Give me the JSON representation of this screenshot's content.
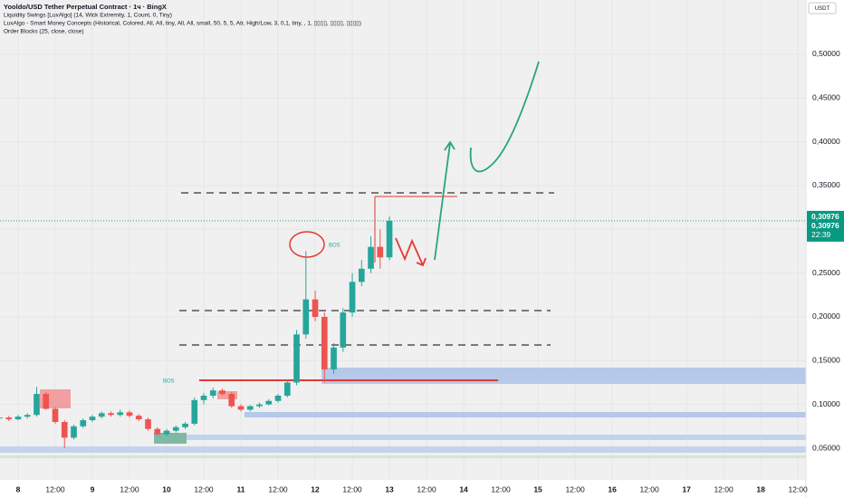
{
  "chart_data": {
    "type": "candlestick",
    "title": "Yooldo/USD Tether Perpetual Contract · 1ч · BingX",
    "indicators": [
      "Liquidity Swings [LuxAlgo] (14, Wick Extremity, 1, Count, 0, Tiny)",
      "LuxAlgo - Smart Money Concepts (Historical, Colored, All, All, tiny, All, All, small, 50, 5, 5, Atr, High/Low, 3, 0,1, tiny, , 1, ▯▯▯▯, ▯▯▯▯, ▯▯▯▯)",
      "Order Blocks (25, close, close)"
    ],
    "currency": "USDT",
    "up_color": "#26a69a",
    "down_color": "#ef5350",
    "x": [
      -6,
      -3,
      0,
      3,
      6,
      9,
      12,
      15,
      18,
      21,
      24,
      27,
      30,
      33,
      36,
      39,
      42,
      45,
      48,
      51,
      54,
      57,
      60,
      63,
      66,
      69,
      72,
      75,
      78,
      81,
      84,
      87,
      90,
      93,
      96,
      99,
      102,
      105,
      108,
      111,
      114,
      117,
      120
    ],
    "open": [
      0.084,
      0.085,
      0.083,
      0.086,
      0.088,
      0.112,
      0.095,
      0.08,
      0.062,
      0.075,
      0.082,
      0.086,
      0.09,
      0.088,
      0.091,
      0.087,
      0.083,
      0.072,
      0.066,
      0.07,
      0.074,
      0.078,
      0.105,
      0.11,
      0.116,
      0.112,
      0.098,
      0.094,
      0.098,
      0.1,
      0.104,
      0.11,
      0.125,
      0.18,
      0.22,
      0.2,
      0.14,
      0.165,
      0.205,
      0.24,
      0.255,
      0.28,
      0.268
    ],
    "high": [
      0.087,
      0.087,
      0.088,
      0.09,
      0.12,
      0.114,
      0.097,
      0.082,
      0.077,
      0.084,
      0.088,
      0.092,
      0.092,
      0.094,
      0.093,
      0.089,
      0.085,
      0.074,
      0.072,
      0.076,
      0.08,
      0.108,
      0.113,
      0.119,
      0.118,
      0.114,
      0.1,
      0.099,
      0.102,
      0.106,
      0.112,
      0.128,
      0.185,
      0.275,
      0.23,
      0.205,
      0.17,
      0.21,
      0.25,
      0.265,
      0.292,
      0.3,
      0.315
    ],
    "low": [
      0.082,
      0.081,
      0.082,
      0.084,
      0.086,
      0.094,
      0.078,
      0.05,
      0.06,
      0.073,
      0.08,
      0.084,
      0.086,
      0.086,
      0.085,
      0.081,
      0.07,
      0.064,
      0.064,
      0.068,
      0.072,
      0.076,
      0.1,
      0.107,
      0.11,
      0.096,
      0.092,
      0.092,
      0.096,
      0.099,
      0.102,
      0.108,
      0.122,
      0.175,
      0.195,
      0.125,
      0.135,
      0.16,
      0.2,
      0.235,
      0.25,
      0.255,
      0.265
    ],
    "close": [
      0.085,
      0.083,
      0.086,
      0.088,
      0.112,
      0.095,
      0.08,
      0.062,
      0.075,
      0.082,
      0.086,
      0.09,
      0.088,
      0.091,
      0.087,
      0.083,
      0.072,
      0.066,
      0.07,
      0.074,
      0.078,
      0.105,
      0.11,
      0.116,
      0.112,
      0.098,
      0.094,
      0.098,
      0.1,
      0.104,
      0.11,
      0.125,
      0.18,
      0.22,
      0.2,
      0.14,
      0.165,
      0.205,
      0.24,
      0.255,
      0.28,
      0.268,
      0.30976
    ],
    "last_price": 0.30976,
    "value_labels": [
      "0,30976",
      "0,30976"
    ],
    "countdown": "22:39",
    "xlim": [
      -5.85,
      254.6
    ],
    "ylim": [
      0.0138,
      0.562
    ],
    "xticks": [
      {
        "value": 0,
        "label": "8"
      },
      {
        "value": 12,
        "label": "12:00"
      },
      {
        "value": 24,
        "label": "9"
      },
      {
        "value": 36,
        "label": "12:00"
      },
      {
        "value": 48,
        "label": "10"
      },
      {
        "value": 60,
        "label": "12:00"
      },
      {
        "value": 72,
        "label": "11"
      },
      {
        "value": 84,
        "label": "12:00"
      },
      {
        "value": 96,
        "label": "12"
      },
      {
        "value": 108,
        "label": "12:00"
      },
      {
        "value": 120,
        "label": "13"
      },
      {
        "value": 132,
        "label": "12:00"
      },
      {
        "value": 144,
        "label": "14"
      },
      {
        "value": 156,
        "label": "12:00"
      },
      {
        "value": 168,
        "label": "15"
      },
      {
        "value": 180,
        "label": "12:00"
      },
      {
        "value": 192,
        "label": "16"
      },
      {
        "value": 204,
        "label": "12:00"
      },
      {
        "value": 216,
        "label": "17"
      },
      {
        "value": 228,
        "label": "12:00"
      },
      {
        "value": 240,
        "label": "18"
      },
      {
        "value": 252,
        "label": "12:00"
      }
    ],
    "yticks": [
      {
        "value": 0.05,
        "label": "0,05000"
      },
      {
        "value": 0.1,
        "label": "0,10000"
      },
      {
        "value": 0.15,
        "label": "0,15000"
      },
      {
        "value": 0.2,
        "label": "0,20000"
      },
      {
        "value": 0.25,
        "label": "0,25000"
      },
      {
        "value": 0.3,
        "label": "0,30000"
      },
      {
        "value": 0.35,
        "label": "0,35000"
      },
      {
        "value": 0.4,
        "label": "0,40000"
      },
      {
        "value": 0.45,
        "label": "0,45000"
      },
      {
        "value": 0.5,
        "label": "0,50000"
      }
    ],
    "annotations": [
      "BOS",
      "BOS"
    ]
  }
}
